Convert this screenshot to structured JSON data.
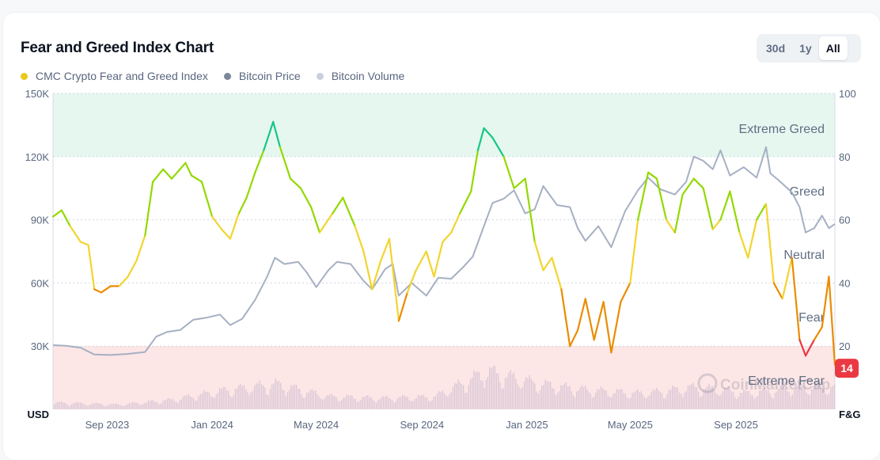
{
  "header": {
    "title": "Fear and Greed Index Chart",
    "ranges": [
      "30d",
      "1y",
      "All"
    ],
    "active_range": "All"
  },
  "legend": [
    {
      "label": "CMC Crypto Fear and Greed Index",
      "color": "#e8c91c"
    },
    {
      "label": "Bitcoin Price",
      "color": "#7d879a"
    },
    {
      "label": "Bitcoin Volume",
      "color": "#c9cfdd"
    }
  ],
  "watermark": "CoinMarketCap",
  "colors": {
    "extreme_fear": "#ea3943",
    "fear": "#ea8c00",
    "neutral": "#f3d42f",
    "greed": "#93d900",
    "extreme_greed": "#16c784",
    "price_line": "#a6b0c3",
    "volume_bars": "#d9c7d6",
    "greed_band": "#e6f7f0",
    "fear_band": "#fde6e6",
    "badge": "#ea3943"
  },
  "chart_data": {
    "type": "line",
    "left_axis": {
      "unit": "USD",
      "ticks": [
        "150K",
        "120K",
        "90K",
        "60K",
        "30K"
      ],
      "range": [
        0,
        150000
      ]
    },
    "right_axis": {
      "unit": "F&G",
      "ticks": [
        "100",
        "80",
        "60",
        "40",
        "20"
      ],
      "range": [
        0,
        100
      ]
    },
    "x_ticks": [
      "Sep 2023",
      "Jan 2024",
      "May 2024",
      "Sep 2024",
      "Jan 2025",
      "May 2025",
      "Sep 2025"
    ],
    "zones": [
      {
        "label": "Extreme Greed",
        "from": 80,
        "to": 100
      },
      {
        "label": "Greed",
        "from": 60,
        "to": 80
      },
      {
        "label": "Neutral",
        "from": 40,
        "to": 60
      },
      {
        "label": "Fear",
        "from": 20,
        "to": 40
      },
      {
        "label": "Extreme Fear",
        "from": 0,
        "to": 20
      }
    ],
    "current_value": "14",
    "grid": true,
    "legend_position": "top-left",
    "series": [
      {
        "name": "CMC Crypto Fear and Greed Index",
        "axis": "right",
        "x": [
          "2023-06-30",
          "2023-07-10",
          "2023-07-20",
          "2023-08-01",
          "2023-08-10",
          "2023-08-17",
          "2023-08-25",
          "2023-09-05",
          "2023-09-15",
          "2023-09-25",
          "2023-10-05",
          "2023-10-15",
          "2023-10-24",
          "2023-11-05",
          "2023-11-15",
          "2023-12-01",
          "2023-12-08",
          "2023-12-20",
          "2024-01-01",
          "2024-01-12",
          "2024-01-22",
          "2024-02-01",
          "2024-02-10",
          "2024-02-20",
          "2024-03-01",
          "2024-03-12",
          "2024-03-20",
          "2024-04-01",
          "2024-04-13",
          "2024-04-25",
          "2024-05-05",
          "2024-05-20",
          "2024-06-01",
          "2024-06-15",
          "2024-06-25",
          "2024-07-05",
          "2024-07-15",
          "2024-07-25",
          "2024-08-05",
          "2024-08-15",
          "2024-08-25",
          "2024-09-06",
          "2024-09-15",
          "2024-09-25",
          "2024-10-05",
          "2024-10-15",
          "2024-10-28",
          "2024-11-05",
          "2024-11-12",
          "2024-11-22",
          "2024-12-05",
          "2024-12-17",
          "2024-12-30",
          "2025-01-10",
          "2025-01-20",
          "2025-01-30",
          "2025-02-10",
          "2025-02-20",
          "2025-03-01",
          "2025-03-10",
          "2025-03-20",
          "2025-03-31",
          "2025-04-09",
          "2025-04-20",
          "2025-05-01",
          "2025-05-10",
          "2025-05-22",
          "2025-06-01",
          "2025-06-12",
          "2025-06-22",
          "2025-07-01",
          "2025-07-14",
          "2025-07-25",
          "2025-08-05",
          "2025-08-14",
          "2025-08-25",
          "2025-09-05",
          "2025-09-15",
          "2025-09-25",
          "2025-10-06",
          "2025-10-15",
          "2025-10-25",
          "2025-11-05",
          "2025-11-14",
          "2025-11-21",
          "2025-12-01",
          "2025-12-10",
          "2025-12-18",
          "2025-12-25"
        ],
        "values": [
          61,
          63,
          58,
          53,
          52,
          38,
          37,
          39,
          39,
          42,
          47,
          55,
          72,
          76,
          73,
          78,
          74,
          72,
          61,
          57,
          54,
          62,
          67,
          75,
          82,
          91,
          83,
          73,
          70,
          64,
          56,
          62,
          67,
          58,
          50,
          38,
          47,
          54,
          28,
          37,
          44,
          50,
          42,
          53,
          56,
          62,
          69,
          82,
          89,
          86,
          80,
          70,
          73,
          53,
          44,
          48,
          38,
          20,
          25,
          35,
          22,
          34,
          18,
          34,
          40,
          60,
          75,
          73,
          60,
          56,
          68,
          73,
          70,
          57,
          60,
          69,
          56,
          48,
          60,
          65,
          40,
          35,
          48,
          22,
          17,
          22,
          26,
          42,
          14
        ]
      },
      {
        "name": "Bitcoin Price",
        "axis": "left",
        "x": [
          "2023-06-30",
          "2023-07-15",
          "2023-08-01",
          "2023-08-17",
          "2023-09-05",
          "2023-09-25",
          "2023-10-15",
          "2023-10-28",
          "2023-11-10",
          "2023-11-25",
          "2023-12-10",
          "2023-12-25",
          "2024-01-10",
          "2024-01-22",
          "2024-02-05",
          "2024-02-20",
          "2024-03-05",
          "2024-03-14",
          "2024-03-25",
          "2024-04-10",
          "2024-04-20",
          "2024-05-01",
          "2024-05-15",
          "2024-05-25",
          "2024-06-10",
          "2024-06-25",
          "2024-07-05",
          "2024-07-20",
          "2024-07-29",
          "2024-08-05",
          "2024-08-20",
          "2024-09-06",
          "2024-09-20",
          "2024-10-05",
          "2024-10-20",
          "2024-10-30",
          "2024-11-12",
          "2024-11-22",
          "2024-12-05",
          "2024-12-17",
          "2024-12-30",
          "2025-01-10",
          "2025-01-20",
          "2025-02-05",
          "2025-02-20",
          "2025-03-01",
          "2025-03-10",
          "2025-03-25",
          "2025-04-09",
          "2025-04-25",
          "2025-05-10",
          "2025-05-22",
          "2025-06-05",
          "2025-06-22",
          "2025-07-05",
          "2025-07-14",
          "2025-07-25",
          "2025-08-05",
          "2025-08-14",
          "2025-08-25",
          "2025-09-10",
          "2025-09-25",
          "2025-10-06",
          "2025-10-11",
          "2025-10-20",
          "2025-11-05",
          "2025-11-14",
          "2025-11-21",
          "2025-12-01",
          "2025-12-10",
          "2025-12-18",
          "2025-12-25"
        ],
        "values": [
          30500,
          30200,
          29300,
          26000,
          25800,
          26300,
          27200,
          34500,
          36800,
          37700,
          42500,
          43500,
          45000,
          40000,
          43000,
          52000,
          63000,
          72000,
          69000,
          70000,
          65000,
          58000,
          66000,
          70000,
          69000,
          61000,
          57000,
          66500,
          69000,
          54000,
          60000,
          54000,
          62500,
          62000,
          68000,
          72500,
          87000,
          98000,
          100000,
          104000,
          93000,
          95000,
          106000,
          97000,
          96000,
          86000,
          80000,
          87000,
          77000,
          94000,
          104000,
          110000,
          104500,
          102000,
          108000,
          120000,
          118000,
          114000,
          123000,
          111000,
          115000,
          110000,
          124500,
          112000,
          109000,
          103000,
          96000,
          84000,
          86000,
          92000,
          86000,
          88000
        ]
      },
      {
        "name": "Bitcoin Volume",
        "axis": "left",
        "x": [
          "2023-07",
          "2023-09",
          "2023-11",
          "2024-01",
          "2024-03",
          "2024-05",
          "2024-07",
          "2024-09",
          "2024-11",
          "2025-01",
          "2025-03",
          "2025-05",
          "2025-07",
          "2025-09",
          "2025-11"
        ],
        "values": [
          2,
          1.5,
          3,
          6,
          8,
          4,
          3.5,
          4,
          12,
          8,
          6,
          5,
          7,
          5,
          7
        ]
      }
    ]
  }
}
